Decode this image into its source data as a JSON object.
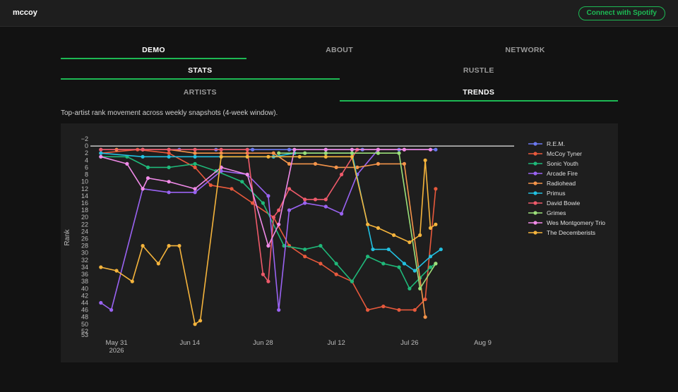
{
  "app": {
    "brand": "mccoy",
    "connect_label": "Connect with Spotify"
  },
  "tabs_row1": [
    {
      "label": "DEMO",
      "active": true
    },
    {
      "label": "ABOUT",
      "active": false
    },
    {
      "label": "NETWORK",
      "active": false
    }
  ],
  "tabs_row2": [
    {
      "label": "STATS",
      "active": true
    },
    {
      "label": "RUSTLE",
      "active": false
    }
  ],
  "tabs_row3": [
    {
      "label": "ARTISTS",
      "active": false
    },
    {
      "label": "TRENDS",
      "active": true
    }
  ],
  "subtitle": "Top-artist rank movement across weekly snapshots (4-week window).",
  "colors": {
    "accent": "#1db954",
    "background": "#121212",
    "panel": "#1e1e1e"
  },
  "chart_data": {
    "type": "line",
    "title": "",
    "xlabel": "",
    "ylabel": "Rank",
    "y_reversed": true,
    "ylim": [
      -2,
      53
    ],
    "xlim": [
      "2026-05-26",
      "2026-08-15"
    ],
    "y_ticks": [
      "−2",
      "0",
      "2",
      "4",
      "6",
      "8",
      "10",
      "12",
      "14",
      "16",
      "18",
      "20",
      "22",
      "24",
      "26",
      "28",
      "30",
      "32",
      "34",
      "36",
      "38",
      "40",
      "42",
      "44",
      "46",
      "48",
      "50",
      "52",
      "53"
    ],
    "x_ticks": [
      {
        "date": "2026-05-31",
        "label": "May 31",
        "sublabel": "2026"
      },
      {
        "date": "2026-06-14",
        "label": "Jun 14",
        "sublabel": ""
      },
      {
        "date": "2026-06-28",
        "label": "Jun 28",
        "sublabel": ""
      },
      {
        "date": "2026-07-12",
        "label": "Jul 12",
        "sublabel": ""
      },
      {
        "date": "2026-07-26",
        "label": "Jul 26",
        "sublabel": ""
      },
      {
        "date": "2026-08-09",
        "label": "Aug 9",
        "sublabel": ""
      }
    ],
    "reference_line": 0,
    "grid": false,
    "legend_position": "right",
    "series": [
      {
        "name": "R.E.M.",
        "color": "#6b78f0",
        "points": [
          [
            "2026-05-28",
            1
          ],
          [
            "2026-06-05",
            1
          ],
          [
            "2026-06-12",
            1
          ],
          [
            "2026-06-19",
            1
          ],
          [
            "2026-06-26",
            1
          ],
          [
            "2026-07-03",
            1
          ],
          [
            "2026-07-10",
            1
          ],
          [
            "2026-07-17",
            1
          ],
          [
            "2026-07-24",
            1
          ],
          [
            "2026-07-31",
            1
          ]
        ]
      },
      {
        "name": "McCoy Tyner",
        "color": "#e8593c",
        "points": [
          [
            "2026-05-28",
            2
          ],
          [
            "2026-06-04",
            1
          ],
          [
            "2026-06-10",
            2
          ],
          [
            "2026-06-15",
            6
          ],
          [
            "2026-06-18",
            11
          ],
          [
            "2026-06-22",
            12
          ],
          [
            "2026-06-26",
            16
          ],
          [
            "2026-06-30",
            20
          ],
          [
            "2026-07-03",
            28
          ],
          [
            "2026-07-06",
            31
          ],
          [
            "2026-07-09",
            33
          ],
          [
            "2026-07-12",
            36
          ],
          [
            "2026-07-15",
            38
          ],
          [
            "2026-07-18",
            46
          ],
          [
            "2026-07-21",
            45
          ],
          [
            "2026-07-24",
            46
          ],
          [
            "2026-07-27",
            46
          ],
          [
            "2026-07-29",
            43
          ],
          [
            "2026-07-31",
            12
          ]
        ]
      },
      {
        "name": "Sonic Youth",
        "color": "#1fb97a",
        "points": [
          [
            "2026-05-28",
            3
          ],
          [
            "2026-06-02",
            3
          ],
          [
            "2026-06-06",
            6
          ],
          [
            "2026-06-10",
            6
          ],
          [
            "2026-06-15",
            5
          ],
          [
            "2026-06-19",
            7
          ],
          [
            "2026-06-24",
            10
          ],
          [
            "2026-06-28",
            16
          ],
          [
            "2026-07-02",
            28
          ],
          [
            "2026-07-06",
            29
          ],
          [
            "2026-07-09",
            28
          ],
          [
            "2026-07-12",
            33
          ],
          [
            "2026-07-15",
            38
          ],
          [
            "2026-07-18",
            31
          ],
          [
            "2026-07-21",
            33
          ],
          [
            "2026-07-24",
            34
          ],
          [
            "2026-07-26",
            40
          ],
          [
            "2026-07-28",
            37
          ],
          [
            "2026-07-30",
            34
          ],
          [
            "2026-07-31",
            33
          ]
        ]
      },
      {
        "name": "Arcade Fire",
        "color": "#9a63f2",
        "points": [
          [
            "2026-05-28",
            44
          ],
          [
            "2026-05-30",
            46
          ],
          [
            "2026-06-05",
            12
          ],
          [
            "2026-06-10",
            13
          ],
          [
            "2026-06-15",
            13
          ],
          [
            "2026-06-20",
            7
          ],
          [
            "2026-06-25",
            8
          ],
          [
            "2026-06-29",
            14
          ],
          [
            "2026-07-01",
            46
          ],
          [
            "2026-07-03",
            18
          ],
          [
            "2026-07-06",
            16
          ],
          [
            "2026-07-10",
            17
          ],
          [
            "2026-07-13",
            19
          ],
          [
            "2026-07-16",
            8
          ],
          [
            "2026-07-20",
            1
          ]
        ]
      },
      {
        "name": "Radiohead",
        "color": "#f4944a",
        "points": [
          [
            "2026-05-31",
            1
          ],
          [
            "2026-06-05",
            1
          ],
          [
            "2026-06-10",
            1
          ],
          [
            "2026-06-15",
            2
          ],
          [
            "2026-06-20",
            2
          ],
          [
            "2026-06-25",
            2
          ],
          [
            "2026-06-30",
            2
          ],
          [
            "2026-07-03",
            5
          ],
          [
            "2026-07-08",
            5
          ],
          [
            "2026-07-12",
            6
          ],
          [
            "2026-07-16",
            6
          ],
          [
            "2026-07-20",
            5
          ],
          [
            "2026-07-25",
            5
          ],
          [
            "2026-07-29",
            48
          ]
        ]
      },
      {
        "name": "Primus",
        "color": "#22c0e0",
        "points": [
          [
            "2026-05-28",
            2
          ],
          [
            "2026-06-05",
            3
          ],
          [
            "2026-06-10",
            3
          ],
          [
            "2026-06-15",
            3
          ],
          [
            "2026-06-20",
            3
          ],
          [
            "2026-06-25",
            3
          ],
          [
            "2026-06-30",
            3
          ],
          [
            "2026-07-04",
            2
          ],
          [
            "2026-07-10",
            2
          ],
          [
            "2026-07-15",
            2
          ],
          [
            "2026-07-19",
            29
          ],
          [
            "2026-07-22",
            29
          ],
          [
            "2026-07-25",
            33
          ],
          [
            "2026-07-27",
            35
          ],
          [
            "2026-07-30",
            31
          ],
          [
            "2026-08-01",
            29
          ]
        ]
      },
      {
        "name": "David Bowie",
        "color": "#ee5a6a",
        "points": [
          [
            "2026-05-28",
            1
          ],
          [
            "2026-06-05",
            1
          ],
          [
            "2026-06-10",
            1
          ],
          [
            "2026-06-15",
            1
          ],
          [
            "2026-06-20",
            1
          ],
          [
            "2026-06-25",
            1
          ],
          [
            "2026-06-28",
            36
          ],
          [
            "2026-06-29",
            38
          ],
          [
            "2026-06-30",
            20
          ],
          [
            "2026-07-01",
            18
          ],
          [
            "2026-07-03",
            12
          ],
          [
            "2026-07-06",
            15
          ],
          [
            "2026-07-08",
            15
          ],
          [
            "2026-07-10",
            15
          ],
          [
            "2026-07-13",
            8
          ],
          [
            "2026-07-16",
            1
          ],
          [
            "2026-07-20",
            1
          ],
          [
            "2026-07-25",
            1
          ]
        ]
      },
      {
        "name": "Grimes",
        "color": "#9ce07a",
        "points": [
          [
            "2026-07-01",
            2
          ],
          [
            "2026-07-06",
            2
          ],
          [
            "2026-07-10",
            2
          ],
          [
            "2026-07-15",
            2
          ],
          [
            "2026-07-20",
            2
          ],
          [
            "2026-07-24",
            2
          ],
          [
            "2026-07-28",
            40
          ],
          [
            "2026-07-31",
            33
          ]
        ]
      },
      {
        "name": "Wes Montgomery Trio",
        "color": "#f08ae8",
        "points": [
          [
            "2026-05-28",
            3
          ],
          [
            "2026-06-02",
            5
          ],
          [
            "2026-06-05",
            12
          ],
          [
            "2026-06-06",
            9
          ],
          [
            "2026-06-10",
            10
          ],
          [
            "2026-06-15",
            12
          ],
          [
            "2026-06-20",
            6
          ],
          [
            "2026-06-25",
            8
          ],
          [
            "2026-06-29",
            28
          ],
          [
            "2026-07-01",
            22
          ],
          [
            "2026-07-04",
            1
          ],
          [
            "2026-07-10",
            1
          ],
          [
            "2026-07-15",
            1
          ],
          [
            "2026-07-20",
            1
          ],
          [
            "2026-07-25",
            1
          ],
          [
            "2026-07-30",
            1
          ]
        ]
      },
      {
        "name": "The Decemberists",
        "color": "#f5b43c",
        "points": [
          [
            "2026-05-28",
            34
          ],
          [
            "2026-05-31",
            35
          ],
          [
            "2026-06-03",
            38
          ],
          [
            "2026-06-05",
            28
          ],
          [
            "2026-06-08",
            33
          ],
          [
            "2026-06-10",
            28
          ],
          [
            "2026-06-12",
            28
          ],
          [
            "2026-06-15",
            50
          ],
          [
            "2026-06-16",
            49
          ],
          [
            "2026-06-20",
            3
          ],
          [
            "2026-06-25",
            3
          ],
          [
            "2026-06-29",
            3
          ],
          [
            "2026-07-05",
            3
          ],
          [
            "2026-07-10",
            3
          ],
          [
            "2026-07-15",
            3
          ],
          [
            "2026-07-18",
            22
          ],
          [
            "2026-07-20",
            23
          ],
          [
            "2026-07-23",
            25
          ],
          [
            "2026-07-26",
            27
          ],
          [
            "2026-07-28",
            25
          ],
          [
            "2026-07-29",
            4
          ],
          [
            "2026-07-30",
            23
          ],
          [
            "2026-07-31",
            22
          ]
        ]
      }
    ]
  }
}
